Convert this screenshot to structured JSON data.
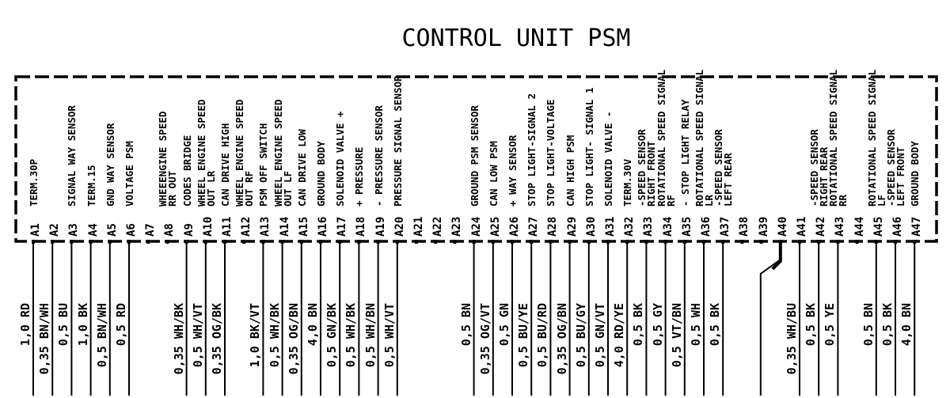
{
  "title": "CONTROL UNIT PSM",
  "line_color": "#000000",
  "pins": [
    {
      "pin": "A1",
      "function": [
        "TERM.30P"
      ],
      "wire": "1,0 RD",
      "connected": true
    },
    {
      "pin": "A2",
      "function": [],
      "wire": "0,35 BN/WH",
      "connected": true
    },
    {
      "pin": "A3",
      "function": [
        "SIGNAL WAY SENSOR"
      ],
      "wire": "0,5 BU",
      "connected": true
    },
    {
      "pin": "A4",
      "function": [
        "TERM.15"
      ],
      "wire": "1,0 BK",
      "connected": true
    },
    {
      "pin": "A5",
      "function": [
        "GND WAY SENSOR"
      ],
      "wire": "0,5 BN/WH",
      "connected": true
    },
    {
      "pin": "A6",
      "function": [
        "VOLTAGE PSM"
      ],
      "wire": "0,5 RD",
      "connected": true
    },
    {
      "pin": "A7",
      "function": [],
      "wire": "",
      "connected": false
    },
    {
      "pin": "A8",
      "function": [
        "WHEEENGINE SPEED",
        "RR OUT"
      ],
      "wire": "",
      "connected": false
    },
    {
      "pin": "A9",
      "function": [
        "CODES BRIDGE"
      ],
      "wire": "0,35 WH/BK",
      "connected": true
    },
    {
      "pin": "A10",
      "function": [
        "WHEEL ENGINE SPEED",
        "OUT LR"
      ],
      "wire": "0,5 WH/VT",
      "connected": true
    },
    {
      "pin": "A11",
      "function": [
        "CAN DRIVE HIGH"
      ],
      "wire": "0,35 OG/BK",
      "connected": true
    },
    {
      "pin": "A12",
      "function": [
        "WHEEL ENGINE SPEED",
        "OUT RF"
      ],
      "wire": "",
      "connected": false
    },
    {
      "pin": "A13",
      "function": [
        "PSM OFF SWITCH"
      ],
      "wire": "1,0 BK/VT",
      "connected": true
    },
    {
      "pin": "A14",
      "function": [
        "WHEEL ENGINE SPEED",
        "OUT LF"
      ],
      "wire": "0,5 WH/BK",
      "connected": true
    },
    {
      "pin": "A15",
      "function": [
        "CAN DRIVE LOW"
      ],
      "wire": "0,35 OG/BN",
      "connected": true
    },
    {
      "pin": "A16",
      "function": [
        "GROUND BODY"
      ],
      "wire": "4,0 BN",
      "connected": true
    },
    {
      "pin": "A17",
      "function": [
        "SOLENOID VALVE +"
      ],
      "wire": "0,5 GN/BK",
      "connected": true
    },
    {
      "pin": "A18",
      "function": [
        "+ PRESSURE"
      ],
      "wire": "0,5 WH/BK",
      "connected": true
    },
    {
      "pin": "A19",
      "function": [
        "- PRESSURE SENSOR"
      ],
      "wire": "0,5 WH/BN",
      "connected": true
    },
    {
      "pin": "A20",
      "function": [
        "PRESSURE SIGNAL SENSOR"
      ],
      "wire": "0,5 WH/VT",
      "connected": true
    },
    {
      "pin": "A21",
      "function": [],
      "wire": "",
      "connected": false
    },
    {
      "pin": "A22",
      "function": [],
      "wire": "",
      "connected": false
    },
    {
      "pin": "A23",
      "function": [],
      "wire": "",
      "connected": false
    },
    {
      "pin": "A24",
      "function": [
        "GROUND PSM SENSOR"
      ],
      "wire": "0,5 BN",
      "connected": true
    },
    {
      "pin": "A25",
      "function": [
        "CAN LOW PSM"
      ],
      "wire": "0,35 OG/VT",
      "connected": true
    },
    {
      "pin": "A26",
      "function": [
        "+ WAY SENSOR"
      ],
      "wire": "0,5 GN",
      "connected": true
    },
    {
      "pin": "A27",
      "function": [
        "STOP LIGHT-SIGNAL 2"
      ],
      "wire": "0,5 BU/YE",
      "connected": true
    },
    {
      "pin": "A28",
      "function": [
        "STOP LIGHT-VOLTAGE"
      ],
      "wire": "0,5 BU/RD",
      "connected": true
    },
    {
      "pin": "A29",
      "function": [
        "CAN HIGH PSM"
      ],
      "wire": "0,35 OG/BN",
      "connected": true
    },
    {
      "pin": "A30",
      "function": [
        "STOP LIGHT- SIGNAL 1"
      ],
      "wire": "0,5 BU/GY",
      "connected": true
    },
    {
      "pin": "A31",
      "function": [
        "SOLENOID VALVE -"
      ],
      "wire": "0,5 GN/VT",
      "connected": true
    },
    {
      "pin": "A32",
      "function": [
        "TERM.30V"
      ],
      "wire": "4,0 RD/YE",
      "connected": true
    },
    {
      "pin": "A33",
      "function": [
        "-SPEED SENSOR",
        "RIGHT FRONT"
      ],
      "wire": "0,5 BK",
      "connected": true
    },
    {
      "pin": "A34",
      "function": [
        "ROTATIONAL SPEED SIGNAL",
        "RF"
      ],
      "wire": "0,5 GY",
      "connected": true
    },
    {
      "pin": "A35",
      "function": [
        "- STOP LIGHT RELAY"
      ],
      "wire": "0,5 VT/BN",
      "connected": true
    },
    {
      "pin": "A36",
      "function": [
        "ROTATIONAL SPEED SIGNAL",
        "LR"
      ],
      "wire": "0,5 WH",
      "connected": true
    },
    {
      "pin": "A37",
      "function": [
        "-SPEED SENSOR",
        "LEFT REAR"
      ],
      "wire": "0,5 BK",
      "connected": true
    },
    {
      "pin": "A38",
      "function": [],
      "wire": "",
      "connected": false
    },
    {
      "pin": "A39",
      "function": [],
      "wire": "",
      "connected": false
    },
    {
      "pin": "A40",
      "function": [],
      "wire": "",
      "connected": true,
      "routed_left": true
    },
    {
      "pin": "A41",
      "function": [],
      "wire": "0,35 WH/BU",
      "connected": true
    },
    {
      "pin": "A42",
      "function": [
        "-SPEED SENSOR",
        "RIGHT REAR"
      ],
      "wire": "0,5 BK",
      "connected": true
    },
    {
      "pin": "A43",
      "function": [
        "ROTATIONAL SPEED SIGNAL",
        "RR"
      ],
      "wire": "0,5 YE",
      "connected": true
    },
    {
      "pin": "A44",
      "function": [],
      "wire": "",
      "connected": false
    },
    {
      "pin": "A45",
      "function": [
        "ROTATIONAL SPEED SIGNAL",
        "LF"
      ],
      "wire": "0,5 BN",
      "connected": true
    },
    {
      "pin": "A46",
      "function": [
        "-SPEED SENSOR",
        "LEFT FRONT"
      ],
      "wire": "0,5 BK",
      "connected": true
    },
    {
      "pin": "A47",
      "function": [
        "GROUND BODY"
      ],
      "wire": "4,0 BN",
      "connected": true
    }
  ]
}
